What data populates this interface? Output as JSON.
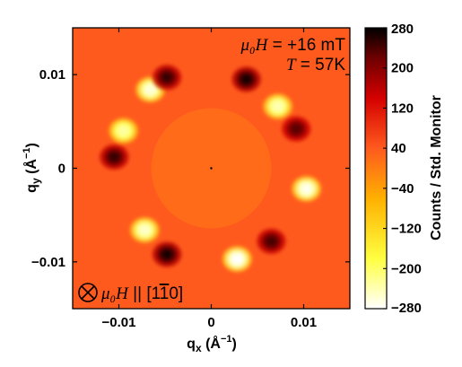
{
  "chart_data": {
    "type": "heatmap",
    "title": "",
    "xlabel": "q_x (Å^-1)",
    "ylabel": "q_y (Å^-1)",
    "xlabel_parts": {
      "base": "q",
      "sub": "x",
      "open": " (Å",
      "sup": "−1",
      "close": ")"
    },
    "ylabel_parts": {
      "base": "q",
      "sub": "y",
      "open": " (Å",
      "sup": "−1",
      "close": ")"
    },
    "xlim": [
      -0.015,
      0.015
    ],
    "ylim": [
      -0.015,
      0.015
    ],
    "x_ticks": [
      {
        "value": -0.01,
        "label": "−0.01"
      },
      {
        "value": 0,
        "label": "0"
      },
      {
        "value": 0.01,
        "label": "0.01"
      }
    ],
    "y_ticks": [
      {
        "value": 0.01,
        "label": "0.01"
      },
      {
        "value": 0,
        "label": "0"
      },
      {
        "value": -0.01,
        "label": "−0.01"
      }
    ],
    "background_value": 40,
    "masked_center": {
      "radius": 0.0065,
      "value": 20
    },
    "spots": [
      {
        "qx": -0.0066,
        "qy": 0.0084,
        "value": -260
      },
      {
        "qx": -0.0048,
        "qy": 0.0097,
        "value": 250
      },
      {
        "qx": 0.0038,
        "qy": 0.0095,
        "value": 270
      },
      {
        "qx": 0.0072,
        "qy": 0.0066,
        "value": -240
      },
      {
        "qx": 0.0092,
        "qy": 0.0042,
        "value": 230
      },
      {
        "qx": 0.0103,
        "qy": -0.0022,
        "value": -270
      },
      {
        "qx": 0.0065,
        "qy": -0.0078,
        "value": 240
      },
      {
        "qx": 0.0028,
        "qy": -0.0097,
        "value": -280
      },
      {
        "qx": -0.0048,
        "qy": -0.0092,
        "value": 270
      },
      {
        "qx": -0.0072,
        "qy": -0.0066,
        "value": -250
      },
      {
        "qx": -0.0105,
        "qy": 0.0012,
        "value": 250
      },
      {
        "qx": -0.0095,
        "qy": 0.004,
        "value": -230
      }
    ],
    "colorbar": {
      "label": "Counts / Std. Monitor",
      "range": [
        -280,
        280
      ],
      "ticks": [
        280,
        200,
        120,
        40,
        -40,
        -120,
        -200,
        -280
      ],
      "tick_labels": [
        "280",
        "200",
        "120",
        "40",
        "−40",
        "−120",
        "−200",
        "−280"
      ],
      "colormap": [
        {
          "v": -280,
          "color": "#ffffff"
        },
        {
          "v": -180,
          "color": "#ffff40"
        },
        {
          "v": -60,
          "color": "#ffb000"
        },
        {
          "v": 40,
          "color": "#ff5a1e"
        },
        {
          "v": 140,
          "color": "#d40000"
        },
        {
          "v": 220,
          "color": "#6e0000"
        },
        {
          "v": 280,
          "color": "#000000"
        }
      ]
    },
    "annotations": {
      "field_symbol": "μ₀H",
      "field_value": " = +16 mT",
      "temp_symbol": "T",
      "temp_value": " = 57K",
      "direction_symbol": "μ₀H",
      "direction_rel": " || ",
      "direction_vector": "[1",
      "direction_bar": "1",
      "direction_end": "0]"
    },
    "grid": false,
    "legend": "none"
  }
}
